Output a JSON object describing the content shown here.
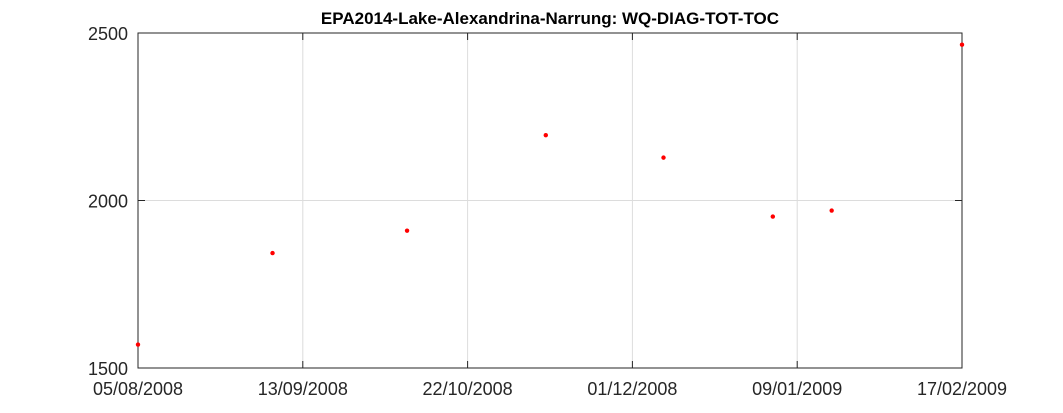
{
  "chart_data": {
    "type": "scatter",
    "title": "EPA2014-Lake-Alexandrina-Narrung: WQ-DIAG-TOT-TOC",
    "xlabel": "",
    "ylabel": "",
    "x_tick_labels": [
      "05/08/2008",
      "13/09/2008",
      "22/10/2008",
      "01/12/2008",
      "09/01/2009",
      "17/02/2009"
    ],
    "y_tick_labels": [
      "1500",
      "2000",
      "2500"
    ],
    "y_ticks": [
      1500,
      2000,
      2500
    ],
    "xlim": [
      "2008-08-05",
      "2009-02-17"
    ],
    "ylim": [
      1500,
      2500
    ],
    "grid": true,
    "marker_color": "#ff0000",
    "series": [
      {
        "x": [
          "2008-08-05",
          "2008-09-06",
          "2008-10-08",
          "2008-11-10",
          "2008-12-08",
          "2009-01-03",
          "2009-01-17",
          "2009-02-17"
        ],
        "y": [
          1570,
          1843,
          1910,
          2195,
          2128,
          1952,
          1970,
          2465
        ]
      }
    ]
  }
}
